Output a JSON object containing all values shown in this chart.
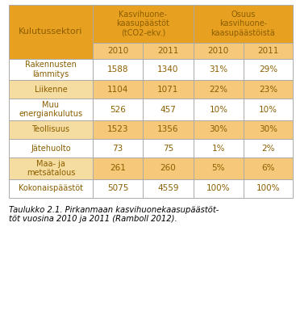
{
  "title_caption": "Taulukko 2.1. Pirkanmaan kasvihuonekaasupäästöt vuosina 2010 ja 2011 (Ramboll 2012).",
  "header_col1": "Kulutussektori",
  "header_col2_top": "Kasvihuone-\nkaasupäästöt\n(tCO2-ekv.)",
  "header_col3_top": "Osuus\nkasvihuone-\nkaasupäästöistä",
  "subheaders": [
    "2010",
    "2011",
    "2010",
    "2011"
  ],
  "rows": [
    {
      "label": "Rakennusten\nlämmitys",
      "v2010": "1588",
      "v2011": "1340",
      "p2010": "31%",
      "p2011": "29%",
      "highlight": false
    },
    {
      "label": "Liikenne",
      "v2010": "1104",
      "v2011": "1071",
      "p2010": "22%",
      "p2011": "23%",
      "highlight": true
    },
    {
      "label": "Muu\nenergiankulutus",
      "v2010": "526",
      "v2011": "457",
      "p2010": "10%",
      "p2011": "10%",
      "highlight": false
    },
    {
      "label": "Teollisuus",
      "v2010": "1523",
      "v2011": "1356",
      "p2010": "30%",
      "p2011": "30%",
      "highlight": true
    },
    {
      "label": "Jätehuolto",
      "v2010": "73",
      "v2011": "75",
      "p2010": "1%",
      "p2011": "2%",
      "highlight": false
    },
    {
      "label": "Maa- ja\nmetsätalous",
      "v2010": "261",
      "v2011": "260",
      "p2010": "5%",
      "p2011": "6%",
      "highlight": true
    },
    {
      "label": "Kokonaispäästöt",
      "v2010": "5075",
      "v2011": "4559",
      "p2010": "100%",
      "p2011": "100%",
      "highlight": false
    }
  ],
  "color_header_dark": "#E8A020",
  "color_header_light": "#F5C87A",
  "color_row_highlight": "#F5DCA0",
  "color_row_normal": "#FFFFFF",
  "color_text": "#8B5E00",
  "color_caption": "#000000",
  "bg_color": "#FFFFFF",
  "border_color": "#AAAAAA",
  "caption_text": "Taulukko 2.1. Pirkanmaan kasvihuonekaasupäästöt vuosina 2010 ja 2011 (Ramboll 2012)."
}
